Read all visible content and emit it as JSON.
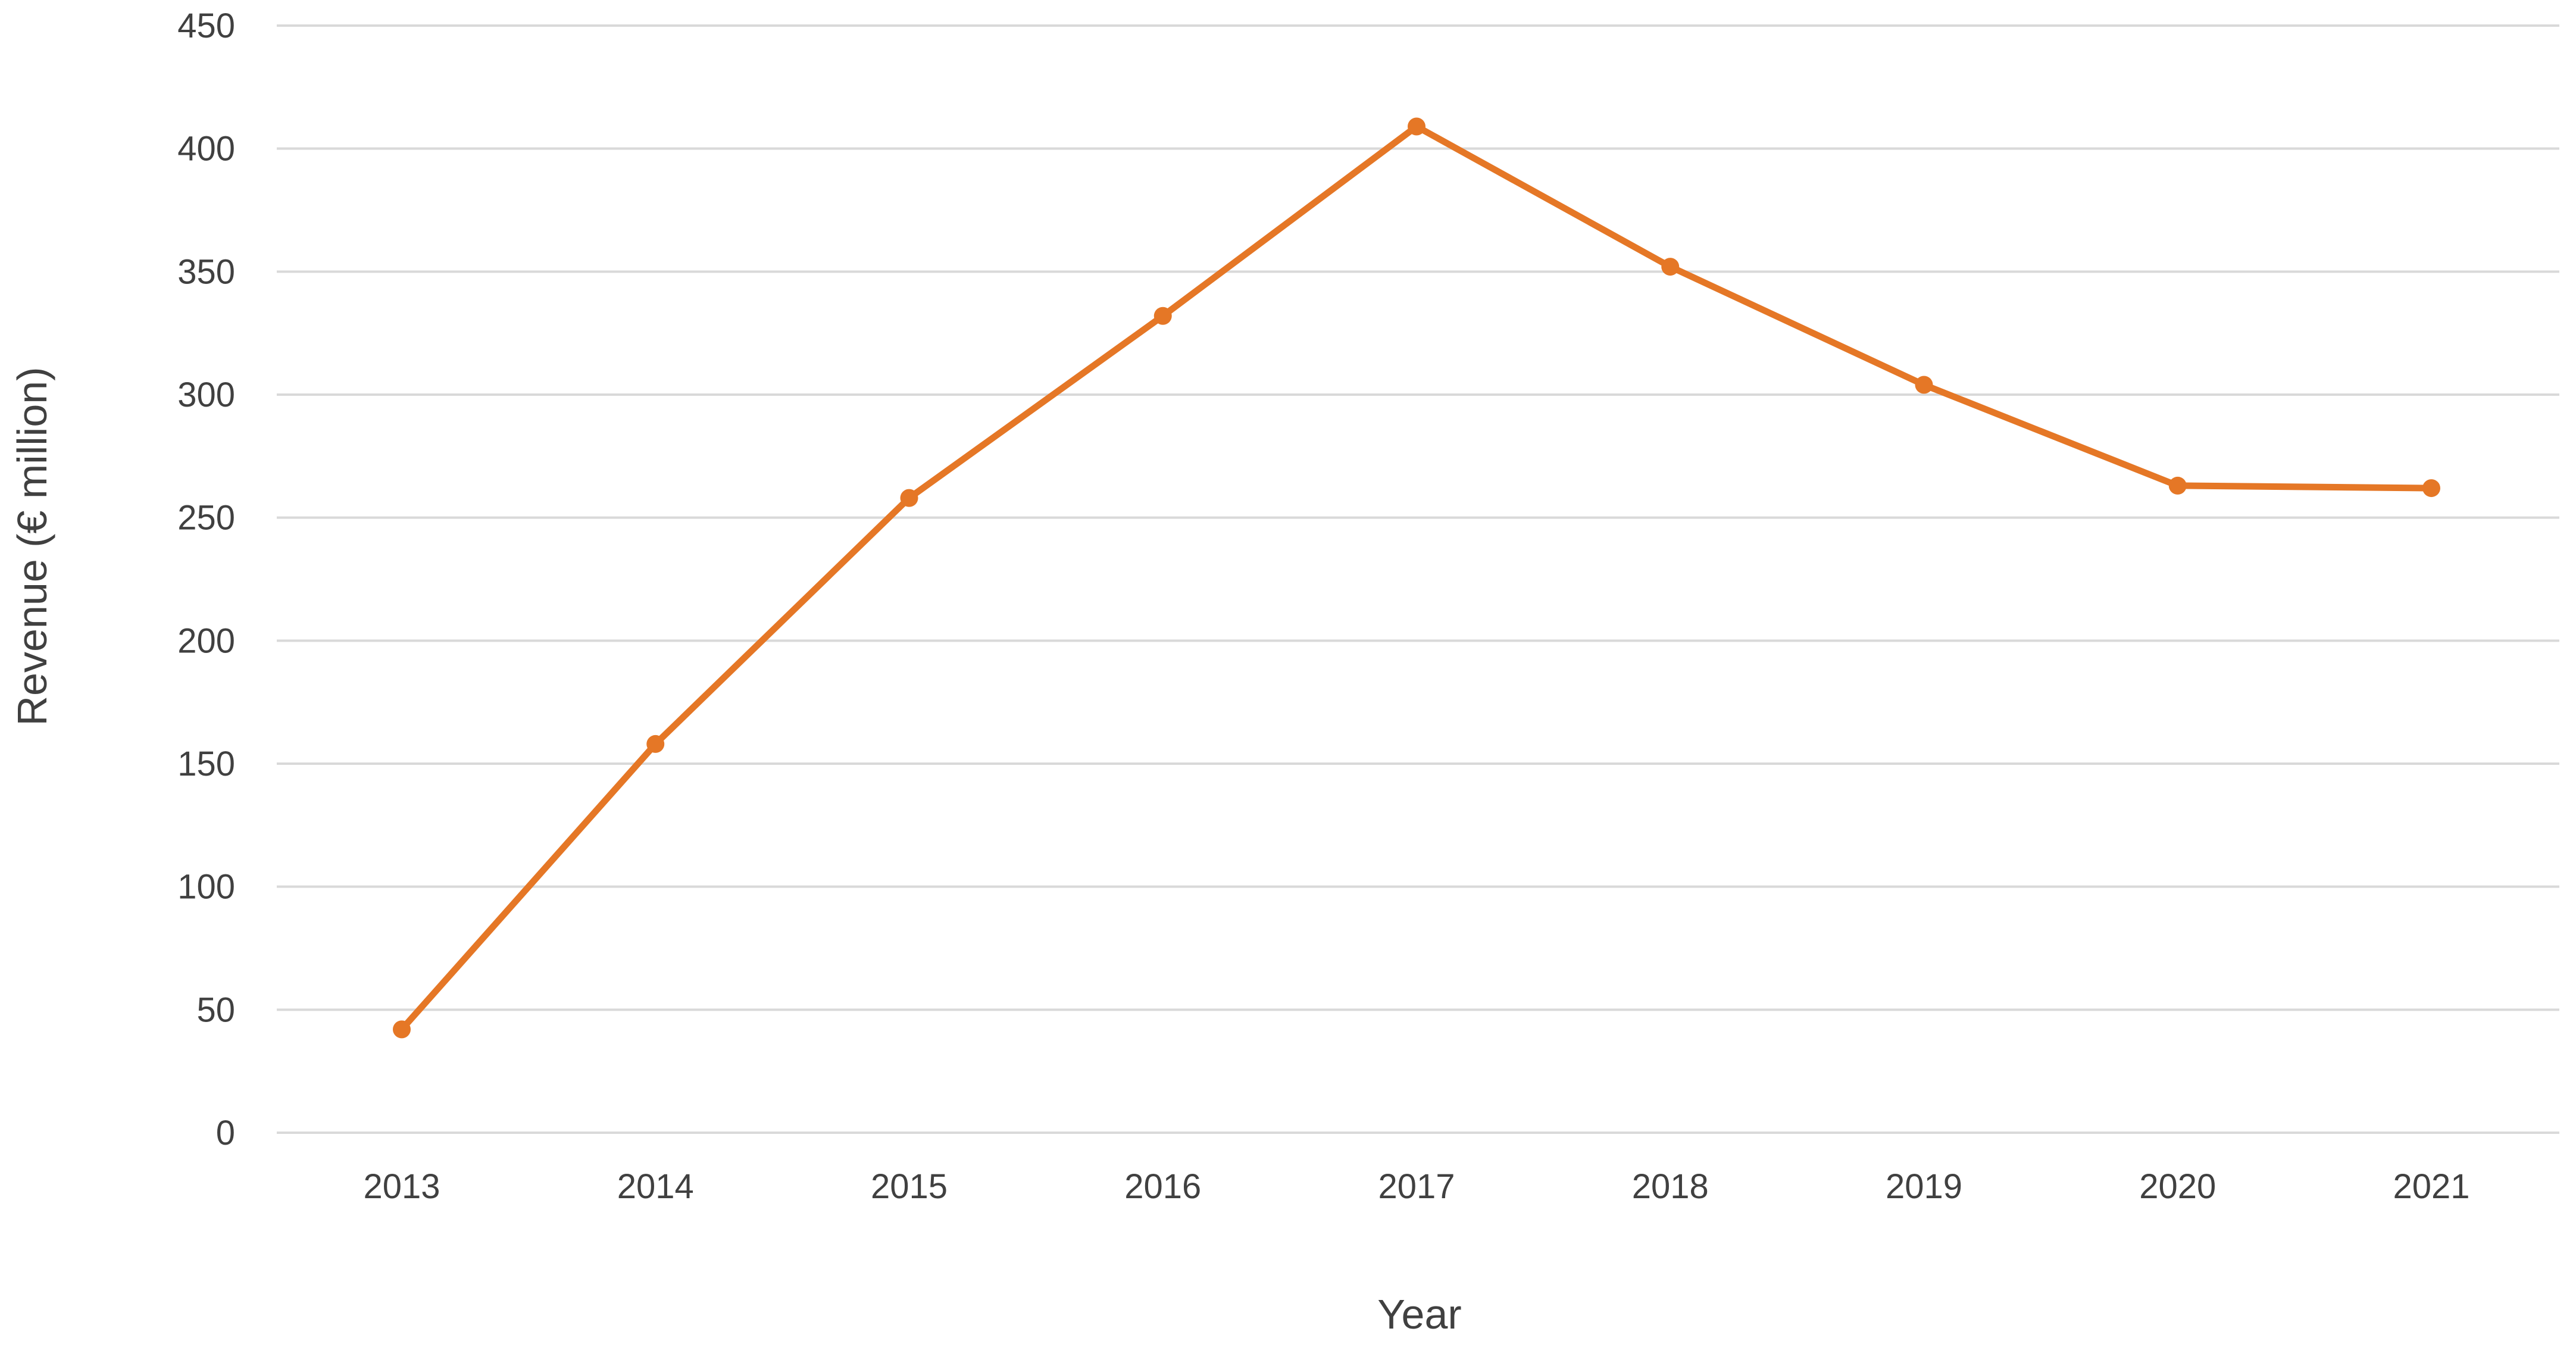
{
  "chart_data": {
    "type": "line",
    "title": "",
    "xlabel": "Year",
    "ylabel": "Revenue (€ million)",
    "categories": [
      "2013",
      "2014",
      "2015",
      "2016",
      "2017",
      "2018",
      "2019",
      "2020",
      "2021"
    ],
    "series": [
      {
        "values": [
          42,
          158,
          258,
          332,
          409,
          352,
          304,
          263,
          262
        ],
        "color": "#e57726"
      }
    ],
    "ylim": [
      0,
      450
    ],
    "yticks": [
      "0",
      "50",
      "100",
      "150",
      "200",
      "250",
      "300",
      "350",
      "400",
      "450"
    ],
    "grid": true,
    "legend": "none"
  }
}
